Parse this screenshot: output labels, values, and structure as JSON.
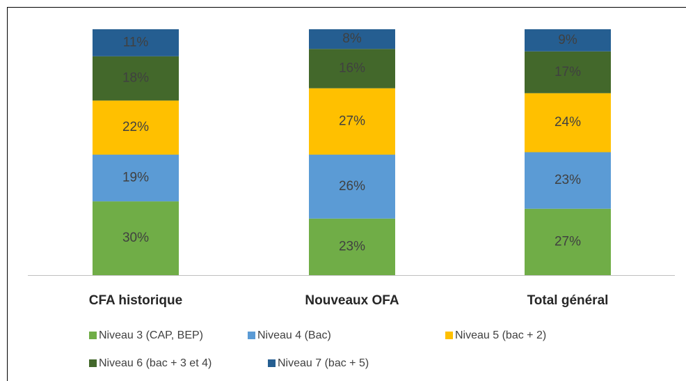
{
  "chart_data": {
    "type": "stacked_bar",
    "categories": [
      "CFA historique",
      "Nouveaux OFA",
      "Total général"
    ],
    "ylim": [
      0,
      100
    ],
    "series": [
      {
        "name": "Niveau 3 (CAP, BEP)",
        "color": "#70ad47",
        "values": [
          30,
          23,
          27
        ],
        "value_labels": [
          "30%",
          "23%",
          "27%"
        ]
      },
      {
        "name": "Niveau 4 (Bac)",
        "color": "#5b9bd5",
        "values": [
          19,
          26,
          23
        ],
        "value_labels": [
          "19%",
          "26%",
          "23%"
        ]
      },
      {
        "name": "Niveau 5 (bac + 2)",
        "color": "#ffc000",
        "values": [
          22,
          27,
          24
        ],
        "value_labels": [
          "22%",
          "27%",
          "24%"
        ]
      },
      {
        "name": "Niveau 6 (bac + 3 et 4)",
        "color": "#43682b",
        "values": [
          18,
          16,
          17
        ],
        "value_labels": [
          "18%",
          "16%",
          "17%"
        ]
      },
      {
        "name": "Niveau 7 (bac + 5)",
        "color": "#255e91",
        "values": [
          11,
          8,
          9
        ],
        "value_labels": [
          "11%",
          "8%",
          "9%"
        ]
      }
    ],
    "legend": "bottom"
  }
}
